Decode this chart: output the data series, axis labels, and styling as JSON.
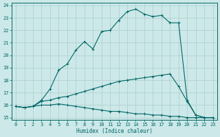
{
  "xlabel": "Humidex (Indice chaleur)",
  "bg_color": "#cce8e8",
  "grid_color": "#aacece",
  "line_color": "#006666",
  "xlim": [
    -0.5,
    23.5
  ],
  "ylim": [
    14.8,
    24.2
  ],
  "xticks": [
    0,
    1,
    2,
    3,
    4,
    5,
    6,
    7,
    8,
    9,
    10,
    11,
    12,
    13,
    14,
    15,
    16,
    17,
    18,
    19,
    20,
    21,
    22,
    23
  ],
  "yticks": [
    15,
    16,
    17,
    18,
    19,
    20,
    21,
    22,
    23,
    24
  ],
  "line1_x": [
    0,
    1,
    2,
    3,
    4,
    5,
    6,
    7,
    8,
    9,
    10,
    11,
    12,
    13,
    14,
    15,
    16,
    17,
    18,
    19,
    20,
    21,
    22,
    23
  ],
  "line1_y": [
    15.9,
    15.8,
    15.9,
    16.0,
    16.0,
    16.1,
    16.0,
    15.9,
    15.8,
    15.7,
    15.6,
    15.5,
    15.5,
    15.4,
    15.3,
    15.3,
    15.2,
    15.2,
    15.1,
    15.1,
    15.0,
    15.0,
    15.0,
    15.0
  ],
  "line2_x": [
    0,
    1,
    2,
    3,
    4,
    5,
    6,
    7,
    8,
    9,
    10,
    11,
    12,
    13,
    14,
    15,
    16,
    17,
    18,
    19,
    20,
    21,
    22,
    23
  ],
  "line2_y": [
    15.9,
    15.8,
    15.9,
    16.3,
    16.4,
    16.6,
    16.7,
    16.9,
    17.1,
    17.3,
    17.5,
    17.7,
    17.9,
    18.0,
    18.1,
    18.2,
    18.3,
    18.4,
    18.5,
    17.5,
    16.3,
    15.2,
    15.0,
    15.0
  ],
  "line3_x": [
    0,
    1,
    2,
    3,
    4,
    5,
    6,
    7,
    8,
    9,
    10,
    11,
    12,
    13,
    14,
    15,
    16,
    17,
    18,
    19,
    20,
    21,
    22,
    23
  ],
  "line3_y": [
    15.9,
    15.8,
    15.9,
    16.4,
    17.3,
    18.8,
    19.3,
    20.4,
    21.1,
    20.5,
    21.9,
    22.0,
    22.8,
    23.5,
    23.7,
    23.3,
    23.1,
    23.2,
    22.6,
    22.6,
    16.4,
    15.2,
    15.0,
    15.0
  ]
}
